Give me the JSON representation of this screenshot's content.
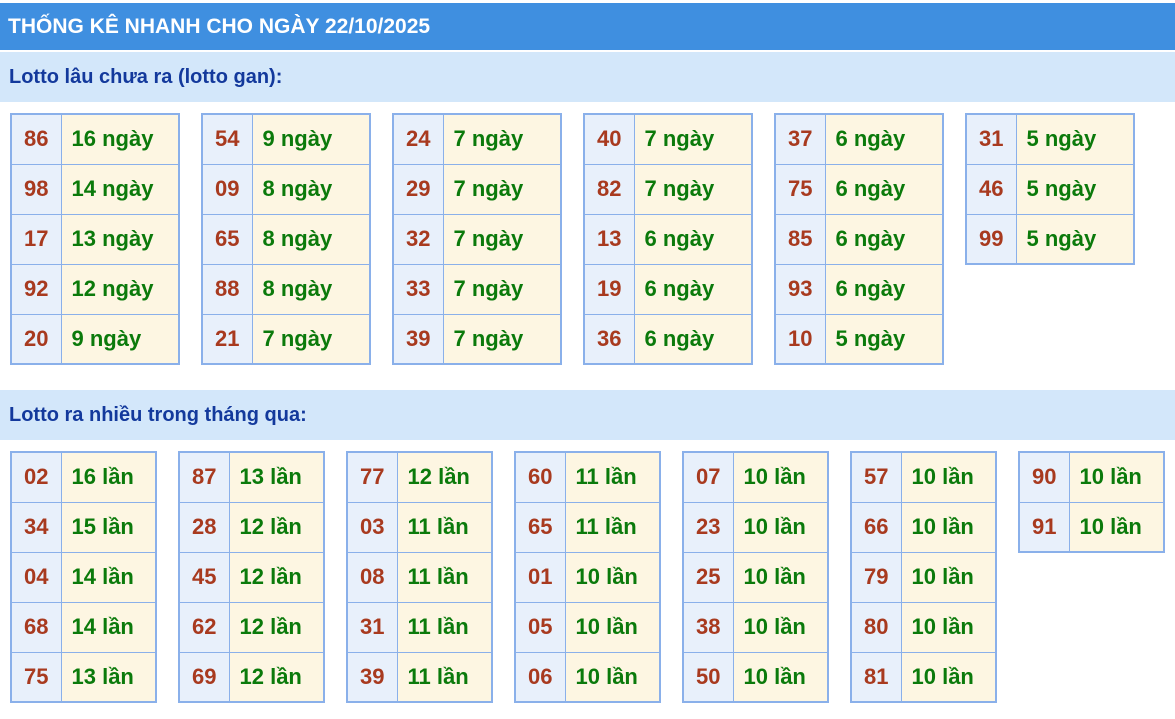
{
  "header": {
    "title": "THỐNG KÊ NHANH CHO NGÀY 22/10/2025"
  },
  "sections": [
    {
      "title": "Lotto lâu chưa ra (lotto gan):",
      "groups": [
        [
          [
            "86",
            "16 ngày"
          ],
          [
            "98",
            "14 ngày"
          ],
          [
            "17",
            "13 ngày"
          ],
          [
            "92",
            "12 ngày"
          ],
          [
            "20",
            "9 ngày"
          ]
        ],
        [
          [
            "54",
            "9 ngày"
          ],
          [
            "09",
            "8 ngày"
          ],
          [
            "65",
            "8 ngày"
          ],
          [
            "88",
            "8 ngày"
          ],
          [
            "21",
            "7 ngày"
          ]
        ],
        [
          [
            "24",
            "7 ngày"
          ],
          [
            "29",
            "7 ngày"
          ],
          [
            "32",
            "7 ngày"
          ],
          [
            "33",
            "7 ngày"
          ],
          [
            "39",
            "7 ngày"
          ]
        ],
        [
          [
            "40",
            "7 ngày"
          ],
          [
            "82",
            "7 ngày"
          ],
          [
            "13",
            "6 ngày"
          ],
          [
            "19",
            "6 ngày"
          ],
          [
            "36",
            "6 ngày"
          ]
        ],
        [
          [
            "37",
            "6 ngày"
          ],
          [
            "75",
            "6 ngày"
          ],
          [
            "85",
            "6 ngày"
          ],
          [
            "93",
            "6 ngày"
          ],
          [
            "10",
            "5 ngày"
          ]
        ],
        [
          [
            "31",
            "5 ngày"
          ],
          [
            "46",
            "5 ngày"
          ],
          [
            "99",
            "5 ngày"
          ]
        ]
      ]
    },
    {
      "title": "Lotto ra nhiều trong tháng qua:",
      "groups": [
        [
          [
            "02",
            "16 lần"
          ],
          [
            "34",
            "15 lần"
          ],
          [
            "04",
            "14 lần"
          ],
          [
            "68",
            "14 lần"
          ],
          [
            "75",
            "13 lần"
          ]
        ],
        [
          [
            "87",
            "13 lần"
          ],
          [
            "28",
            "12 lần"
          ],
          [
            "45",
            "12 lần"
          ],
          [
            "62",
            "12 lần"
          ],
          [
            "69",
            "12 lần"
          ]
        ],
        [
          [
            "77",
            "12 lần"
          ],
          [
            "03",
            "11 lần"
          ],
          [
            "08",
            "11 lần"
          ],
          [
            "31",
            "11 lần"
          ],
          [
            "39",
            "11 lần"
          ]
        ],
        [
          [
            "60",
            "11 lần"
          ],
          [
            "65",
            "11 lần"
          ],
          [
            "01",
            "10 lần"
          ],
          [
            "05",
            "10 lần"
          ],
          [
            "06",
            "10 lần"
          ]
        ],
        [
          [
            "07",
            "10 lần"
          ],
          [
            "23",
            "10 lần"
          ],
          [
            "25",
            "10 lần"
          ],
          [
            "38",
            "10 lần"
          ],
          [
            "50",
            "10 lần"
          ]
        ],
        [
          [
            "57",
            "10 lần"
          ],
          [
            "66",
            "10 lần"
          ],
          [
            "79",
            "10 lần"
          ],
          [
            "80",
            "10 lần"
          ],
          [
            "81",
            "10 lần"
          ]
        ],
        [
          [
            "90",
            "10 lần"
          ],
          [
            "91",
            "10 lần"
          ]
        ]
      ]
    }
  ]
}
